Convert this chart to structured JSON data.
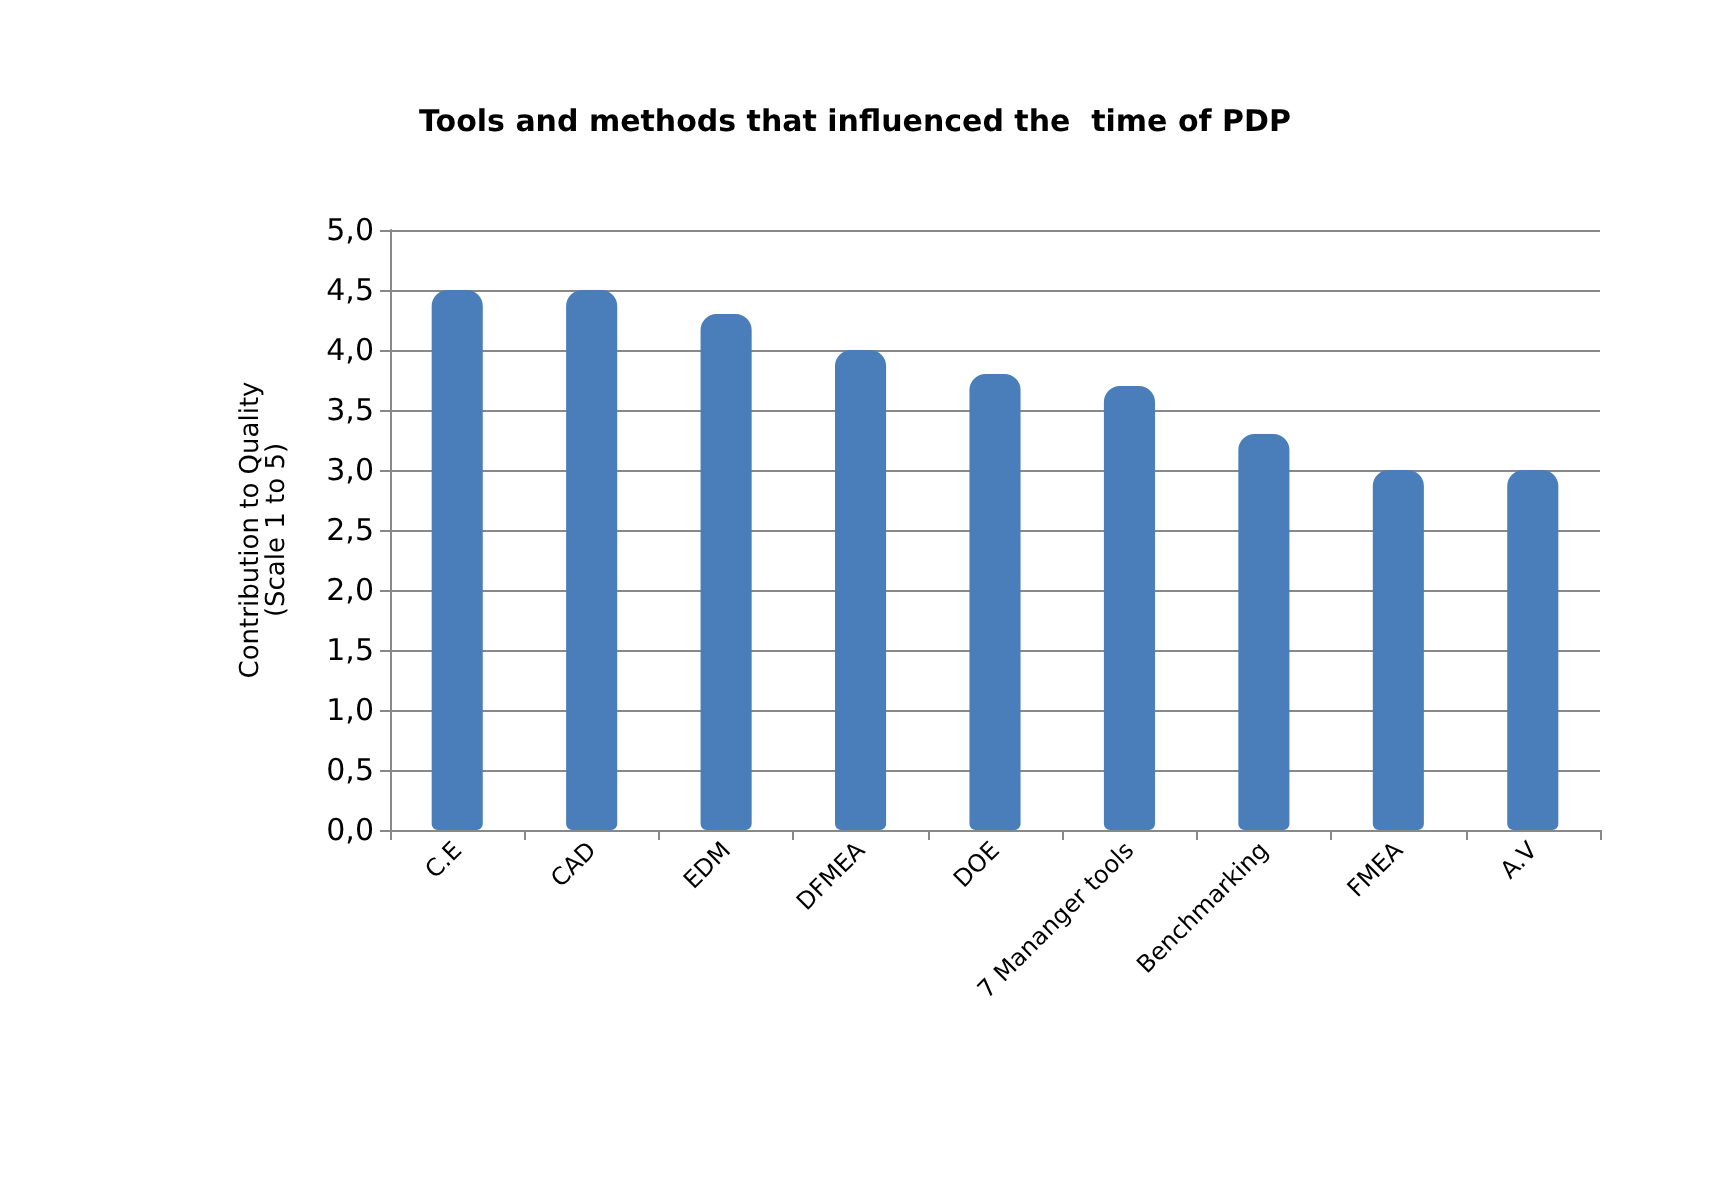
{
  "chart_data": {
    "type": "bar",
    "title": "Tools and methods that influenced the  time of PDP",
    "ylabel": "Contribution to Quality\n(Scale 1 to 5)",
    "categories": [
      "C.E",
      "CAD",
      "EDM",
      "DFMEA",
      "DOE",
      "7 Mananger tools",
      "Benchmarking",
      "FMEA",
      "A.V"
    ],
    "values": [
      4.5,
      4.5,
      4.3,
      4.0,
      3.8,
      3.7,
      3.3,
      3.0,
      3.0
    ],
    "color": "#4a7ebb",
    "ylim": [
      0,
      5
    ],
    "yticks": [
      {
        "value": 0,
        "label": "0,0"
      },
      {
        "value": 0.5,
        "label": "0,5"
      },
      {
        "value": 1,
        "label": "1,0"
      },
      {
        "value": 1.5,
        "label": "1,5"
      },
      {
        "value": 2,
        "label": "2,0"
      },
      {
        "value": 2.5,
        "label": "2,5"
      },
      {
        "value": 3,
        "label": "3,0"
      },
      {
        "value": 3.5,
        "label": "3,5"
      },
      {
        "value": 4,
        "label": "4,0"
      },
      {
        "value": 4.5,
        "label": "4,5"
      },
      {
        "value": 5,
        "label": "5,0"
      }
    ],
    "grid": true
  }
}
